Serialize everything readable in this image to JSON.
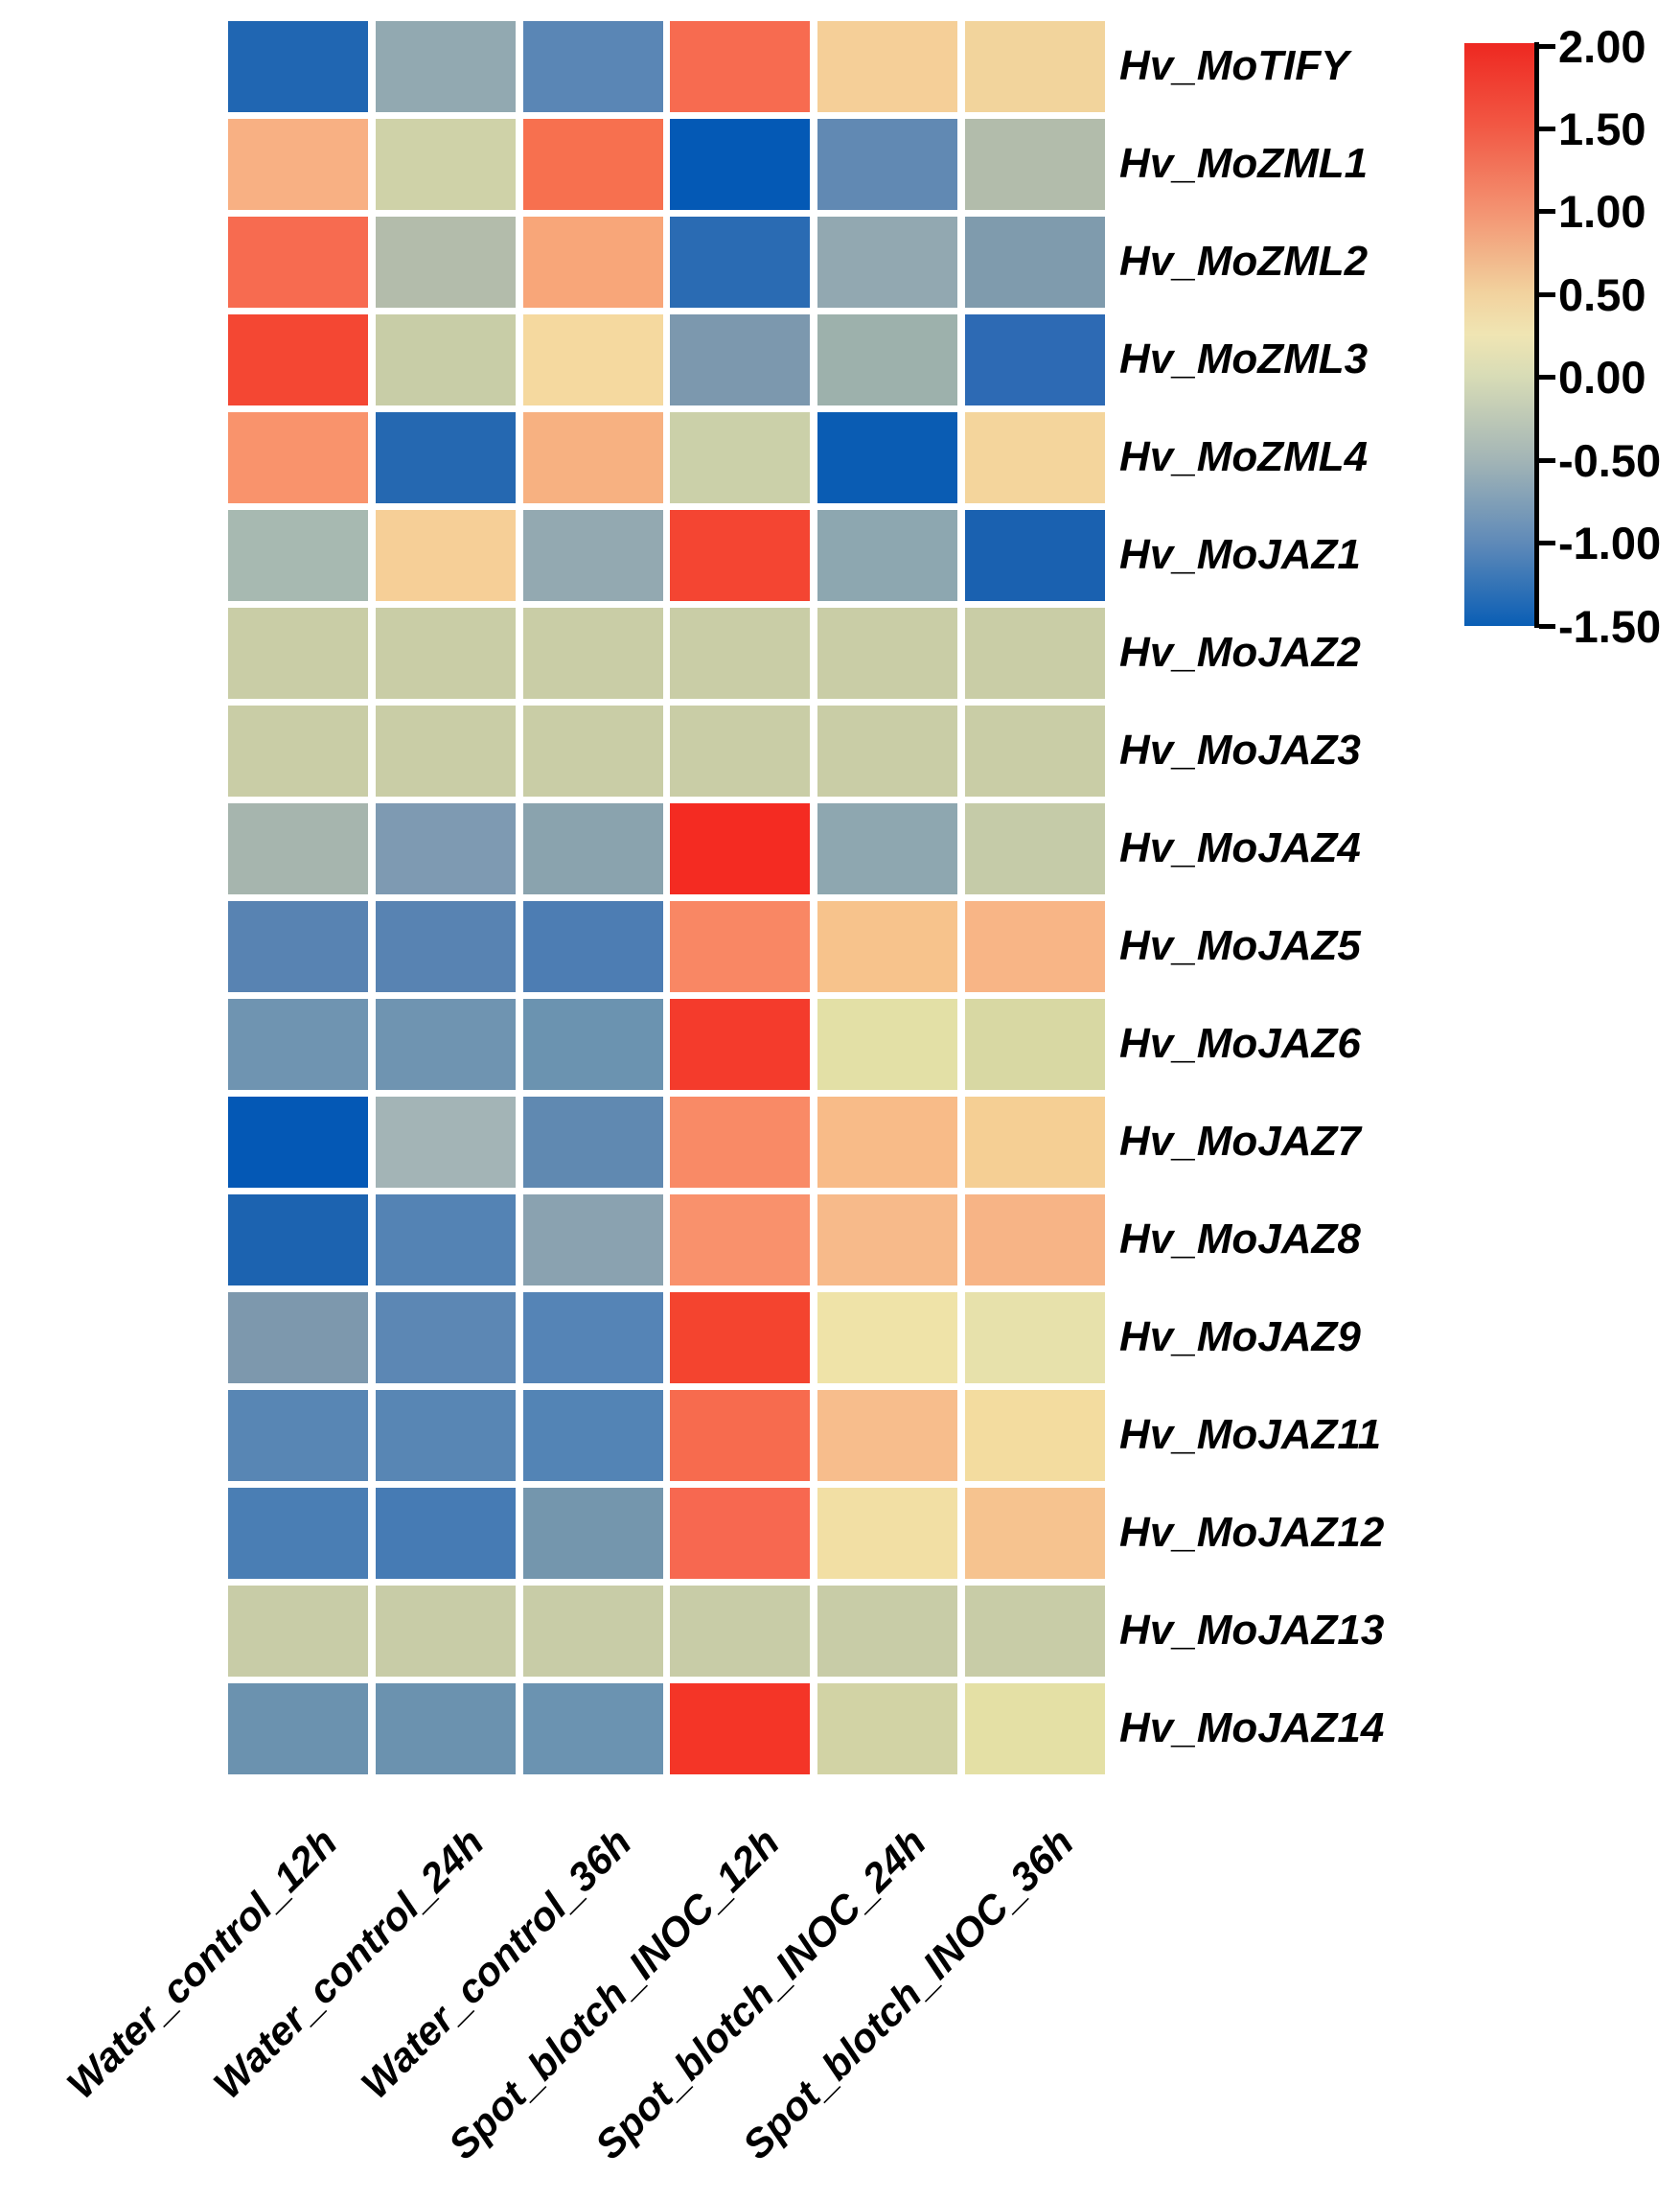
{
  "page": {
    "background": "#ffffff"
  },
  "chart_data": {
    "type": "heatmap",
    "title": "",
    "xlabel": "",
    "ylabel": "",
    "grid_gap_color": "#ffffff",
    "rows": [
      "Hv_MoTIFY",
      "Hv_MoZML1",
      "Hv_MoZML2",
      "Hv_MoZML3",
      "Hv_MoZML4",
      "Hv_MoJAZ1",
      "Hv_MoJAZ2",
      "Hv_MoJAZ3",
      "Hv_MoJAZ4",
      "Hv_MoJAZ5",
      "Hv_MoJAZ6",
      "Hv_MoJAZ7",
      "Hv_MoJAZ8",
      "Hv_MoJAZ9",
      "Hv_MoJAZ11",
      "Hv_MoJAZ12",
      "Hv_MoJAZ13",
      "Hv_MoJAZ14"
    ],
    "columns": [
      "Water_control_12h",
      "Water_control_24h",
      "Water_control_36h",
      "Spot_blotch_INOC_12h",
      "Spot_blotch_INOC_24h",
      "Spot_blotch_INOC_36h"
    ],
    "values": [
      [
        -1.2,
        -0.6,
        -0.95,
        1.35,
        0.55,
        0.5
      ],
      [
        0.85,
        0.05,
        1.3,
        -1.45,
        -0.9,
        -0.35
      ],
      [
        1.35,
        -0.35,
        0.95,
        -1.15,
        -0.6,
        -0.75
      ],
      [
        1.7,
        0.0,
        0.45,
        -0.8,
        -0.55,
        -1.15
      ],
      [
        1.0,
        -1.2,
        0.85,
        0.05,
        -1.4,
        0.5
      ],
      [
        -0.45,
        0.55,
        -0.6,
        1.7,
        -0.65,
        -1.25
      ],
      [
        0.0,
        0.0,
        0.0,
        0.0,
        0.0,
        0.0
      ],
      [
        0.0,
        0.0,
        0.0,
        0.0,
        0.0,
        0.0
      ],
      [
        -0.5,
        -0.8,
        -0.65,
        1.9,
        -0.65,
        -0.05
      ],
      [
        -0.95,
        -0.95,
        -1.0,
        1.1,
        0.7,
        0.8
      ],
      [
        -0.85,
        -0.85,
        -0.85,
        1.8,
        0.2,
        0.1
      ],
      [
        -1.45,
        -0.55,
        -0.9,
        1.1,
        0.75,
        0.55
      ],
      [
        -1.25,
        -0.95,
        -0.65,
        1.05,
        0.75,
        0.8
      ],
      [
        -0.8,
        -0.95,
        -0.95,
        1.7,
        0.25,
        0.2
      ],
      [
        -0.95,
        -0.95,
        -0.95,
        1.35,
        0.7,
        0.4
      ],
      [
        -1.0,
        -1.05,
        -0.8,
        1.35,
        0.35,
        0.7
      ],
      [
        0.0,
        0.0,
        0.0,
        0.0,
        0.0,
        0.0
      ],
      [
        -0.85,
        -0.85,
        -0.85,
        1.85,
        0.05,
        0.2
      ]
    ],
    "cell_colors": [
      [
        "#2066b2",
        "#92a9b1",
        "#5a86b5",
        "#f76b50",
        "#f5cf98",
        "#f2d49c"
      ],
      [
        "#f8b083",
        "#cfd2a8",
        "#f7704f",
        "#0459b5",
        "#6189b3",
        "#b2bcab"
      ],
      [
        "#f76b50",
        "#b3bcab",
        "#f8a679",
        "#2a6bb3",
        "#92a8b1",
        "#7f9bad"
      ],
      [
        "#f44733",
        "#c8cda7",
        "#f5d99f",
        "#7c98ae",
        "#9db1ac",
        "#2d6ab4"
      ],
      [
        "#f9936c",
        "#2568b1",
        "#f7b181",
        "#cbd0a9",
        "#0a5cb3",
        "#f4d59c"
      ],
      [
        "#a7b9b1",
        "#f6cf97",
        "#93a9b1",
        "#f44532",
        "#8da7b0",
        "#1a61b0"
      ],
      [
        "#c9cda6",
        "#c9cda6",
        "#c9cda6",
        "#c9cda6",
        "#c9cda6",
        "#c9cda6"
      ],
      [
        "#c9cda6",
        "#c9cda6",
        "#c9cda6",
        "#c9cda6",
        "#c9cda6",
        "#c9cda6"
      ],
      [
        "#a6b5ae",
        "#7e9ab2",
        "#8aa3ae",
        "#f42b22",
        "#8ea7b0",
        "#c5cba8"
      ],
      [
        "#5883b2",
        "#5883b2",
        "#4d7db3",
        "#f98764",
        "#f7c38c",
        "#f8b586"
      ],
      [
        "#6f94b1",
        "#6f94b1",
        "#6b93b0",
        "#f43b2c",
        "#e3e0a6",
        "#d8d8a3"
      ],
      [
        "#0458b5",
        "#a3b4b6",
        "#6089b1",
        "#f98a66",
        "#f8bb88",
        "#f5cf94"
      ],
      [
        "#1c63b0",
        "#5483b4",
        "#8aa2b0",
        "#f9916c",
        "#f7ba8a",
        "#f7b486"
      ],
      [
        "#7d98ad",
        "#5c87b4",
        "#5584b6",
        "#f4442f",
        "#efe3a8",
        "#e7e1ab"
      ],
      [
        "#5886b4",
        "#5886b4",
        "#5384b5",
        "#f76b4e",
        "#f7bd8c",
        "#f3dc9f"
      ],
      [
        "#4a7eb4",
        "#467bb4",
        "#7496ad",
        "#f76850",
        "#f2dfa4",
        "#f6c38f"
      ],
      [
        "#c8cca7",
        "#c8cca7",
        "#c8cca7",
        "#c8cca7",
        "#c8cca7",
        "#c8cca7"
      ],
      [
        "#6b92af",
        "#6b92af",
        "#6b93b1",
        "#f43527",
        "#d2d3a5",
        "#e4e0a5"
      ]
    ],
    "colorbar": {
      "vmin": -1.5,
      "vmax": 2.0,
      "tick_labels": [
        "2.00",
        "1.50",
        "1.00",
        "0.50",
        "0.00",
        "-0.50",
        "-1.00",
        "-1.50"
      ],
      "gradient_stops": [
        {
          "pos": 0,
          "color": "#ee2821"
        },
        {
          "pos": 14.29,
          "color": "#f25844"
        },
        {
          "pos": 28.57,
          "color": "#f39271"
        },
        {
          "pos": 42.86,
          "color": "#f2d29e"
        },
        {
          "pos": 50,
          "color": "#f0e5b3"
        },
        {
          "pos": 57.14,
          "color": "#d8dcb6"
        },
        {
          "pos": 71.43,
          "color": "#a3b5b6"
        },
        {
          "pos": 85.71,
          "color": "#5f8ab8"
        },
        {
          "pos": 100,
          "color": "#0a5eb5"
        }
      ]
    }
  }
}
